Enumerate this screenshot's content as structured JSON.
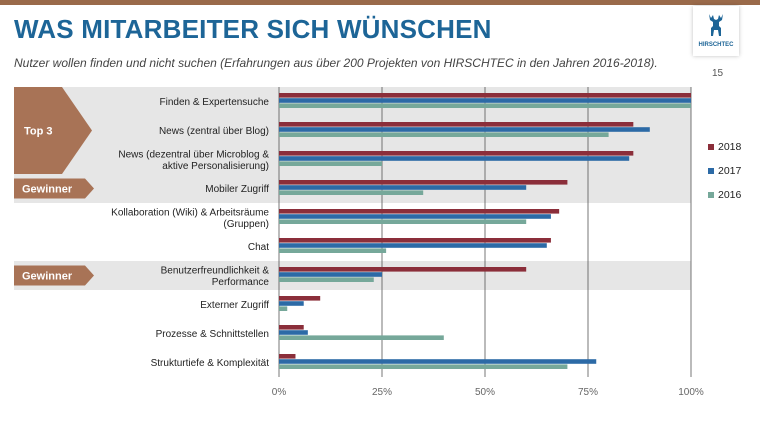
{
  "slide": {
    "title": "WAS MITARBEITER SICH WÜNSCHEN",
    "subtitle": "Nutzer wollen finden und nicht suchen (Erfahrungen aus über 200 Projekten von HIRSCHTEC in den Jahren 2016-2018).",
    "page_number": "15",
    "logo_text": "HIRSCHTEC"
  },
  "colors": {
    "title": "#1d6597",
    "s2018": "#8b2e3a",
    "s2017": "#2c6aa6",
    "s2016": "#76a89a",
    "badge": "#a87356",
    "band": "#e6e6e6",
    "grid": "#555555"
  },
  "chart_data": {
    "type": "bar",
    "orientation": "horizontal",
    "categories": [
      [
        "Finden & Expertensuche"
      ],
      [
        "News (zentral über Blog)"
      ],
      [
        "News (dezentral über Microblog &",
        "aktive Personalisierung)"
      ],
      [
        "Mobiler Zugriff"
      ],
      [
        "Kollaboration (Wiki) & Arbeitsräume",
        "(Gruppen)"
      ],
      [
        "Chat"
      ],
      [
        "Benutzerfreundlichkeit &",
        "Performance"
      ],
      [
        "Externer Zugriff"
      ],
      [
        "Prozesse & Schnittstellen"
      ],
      [
        "Strukturtiefe & Komplexität"
      ]
    ],
    "series": [
      {
        "name": "2018",
        "color_key": "s2018",
        "values": [
          100,
          86,
          86,
          70,
          68,
          66,
          60,
          10,
          6,
          4
        ]
      },
      {
        "name": "2017",
        "color_key": "s2017",
        "values": [
          100,
          90,
          85,
          60,
          66,
          65,
          25,
          6,
          7,
          77
        ]
      },
      {
        "name": "2016",
        "color_key": "s2016",
        "values": [
          100,
          80,
          25,
          35,
          60,
          26,
          23,
          2,
          40,
          70
        ]
      }
    ],
    "xlim": [
      0,
      100
    ],
    "xticks": [
      "0%",
      "25%",
      "50%",
      "75%",
      "100%"
    ],
    "highlight_bands": [
      [
        0,
        2
      ],
      [
        3,
        3
      ],
      [
        6,
        6
      ]
    ],
    "badges": [
      {
        "label": "Top 3",
        "rows": [
          0,
          2
        ],
        "shape": "arrow"
      },
      {
        "label": "Gewinner",
        "rows": [
          3,
          3
        ],
        "shape": "arrow"
      },
      {
        "label": "Gewinner",
        "rows": [
          6,
          6
        ],
        "shape": "arrow"
      }
    ],
    "legend": {
      "position": "right",
      "order": [
        "2018",
        "2017",
        "2016"
      ]
    }
  }
}
